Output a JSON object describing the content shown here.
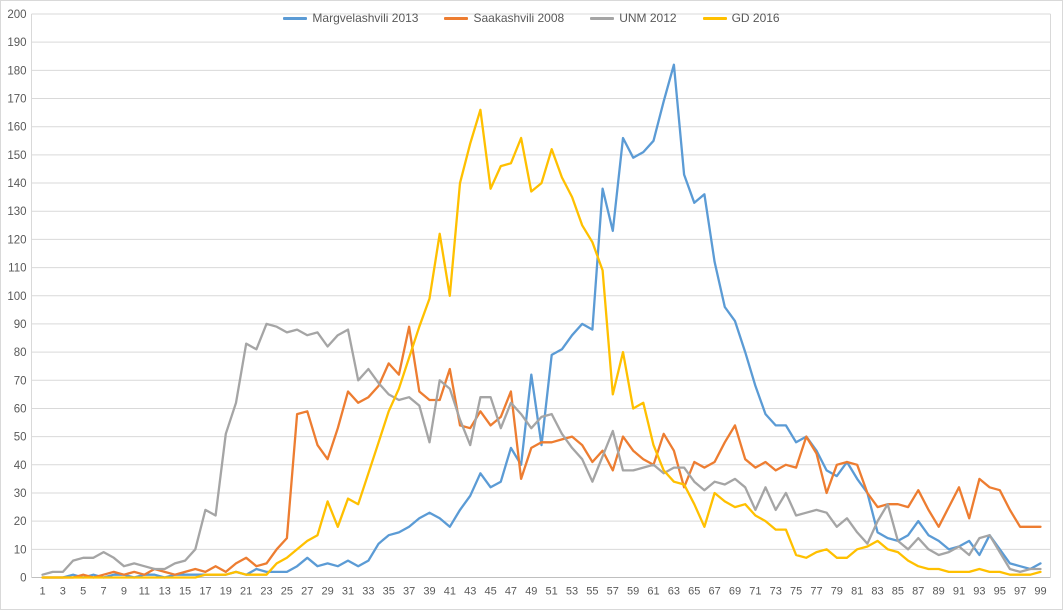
{
  "chart_data": {
    "type": "line",
    "title": "",
    "xlabel": "",
    "ylabel": "",
    "ylim": [
      0,
      200
    ],
    "ytick_step": 10,
    "x_range": [
      1,
      99
    ],
    "x_tick_labels": [
      "1",
      "3",
      "5",
      "7",
      "9",
      "11",
      "13",
      "15",
      "17",
      "19",
      "21",
      "23",
      "25",
      "27",
      "29",
      "31",
      "33",
      "35",
      "37",
      "39",
      "41",
      "43",
      "45",
      "47",
      "49",
      "51",
      "53",
      "55",
      "57",
      "59",
      "61",
      "63",
      "65",
      "67",
      "69",
      "71",
      "73",
      "75",
      "77",
      "79",
      "81",
      "83",
      "85",
      "87",
      "89",
      "91",
      "93",
      "95",
      "97",
      "99"
    ],
    "grid": true,
    "legend_position": "top-center",
    "colors": {
      "background": "#ffffff",
      "gridline": "#d9d9d9",
      "axis_line": "#bfbfbf",
      "tick_text": "#595959"
    },
    "series": [
      {
        "name": "Margvelashvili 2013",
        "color": "#5b9bd5",
        "values": [
          0,
          0,
          0,
          1,
          0,
          1,
          0,
          1,
          1,
          0,
          1,
          1,
          0,
          1,
          1,
          1,
          1,
          1,
          1,
          2,
          1,
          3,
          2,
          2,
          2,
          4,
          7,
          4,
          5,
          4,
          6,
          4,
          6,
          12,
          15,
          16,
          18,
          21,
          23,
          21,
          18,
          24,
          29,
          37,
          32,
          34,
          46,
          40,
          72,
          47,
          79,
          81,
          86,
          90,
          88,
          138,
          123,
          156,
          149,
          151,
          155,
          169,
          182,
          143,
          133,
          136,
          112,
          96,
          91,
          80,
          68,
          58,
          54,
          54,
          48,
          50,
          45,
          38,
          36,
          41,
          35,
          30,
          16,
          14,
          13,
          15,
          20,
          15,
          13,
          10,
          11,
          13,
          8,
          15,
          10,
          5,
          4,
          3,
          5
        ]
      },
      {
        "name": "Saakashvili 2008",
        "color": "#ed7d31",
        "values": [
          0,
          0,
          0,
          0,
          1,
          0,
          1,
          2,
          1,
          2,
          1,
          3,
          2,
          1,
          2,
          3,
          2,
          4,
          2,
          5,
          7,
          4,
          5,
          10,
          14,
          58,
          59,
          47,
          42,
          53,
          66,
          62,
          64,
          68,
          76,
          72,
          89,
          66,
          63,
          63,
          74,
          54,
          53,
          59,
          54,
          57,
          66,
          35,
          46,
          48,
          48,
          49,
          50,
          47,
          41,
          45,
          38,
          50,
          45,
          42,
          40,
          51,
          45,
          32,
          41,
          39,
          41,
          48,
          54,
          42,
          39,
          41,
          38,
          40,
          39,
          50,
          44,
          30,
          40,
          41,
          40,
          30,
          25,
          26,
          26,
          25,
          31,
          24,
          18,
          25,
          32,
          21,
          35,
          32,
          31,
          24,
          18,
          18,
          18
        ]
      },
      {
        "name": "UNM 2012",
        "color": "#a5a5a5",
        "values": [
          1,
          2,
          2,
          6,
          7,
          7,
          9,
          7,
          4,
          5,
          4,
          3,
          3,
          5,
          6,
          10,
          24,
          22,
          51,
          62,
          83,
          81,
          90,
          89,
          87,
          88,
          86,
          87,
          82,
          86,
          88,
          70,
          74,
          69,
          65,
          63,
          64,
          61,
          48,
          70,
          67,
          56,
          47,
          64,
          64,
          53,
          62,
          58,
          53,
          57,
          58,
          51,
          46,
          42,
          34,
          43,
          52,
          38,
          38,
          39,
          40,
          37,
          39,
          39,
          34,
          31,
          34,
          33,
          35,
          32,
          24,
          32,
          24,
          30,
          22,
          23,
          24,
          23,
          18,
          21,
          16,
          12,
          20,
          26,
          13,
          10,
          14,
          10,
          8,
          9,
          11,
          8,
          14,
          15,
          9,
          3,
          2,
          3,
          3
        ]
      },
      {
        "name": "GD 2016",
        "color": "#ffc000",
        "values": [
          0,
          0,
          0,
          0,
          0,
          0,
          0,
          0,
          0,
          0,
          0,
          0,
          0,
          0,
          0,
          0,
          1,
          1,
          1,
          2,
          1,
          1,
          1,
          5,
          7,
          10,
          13,
          15,
          27,
          18,
          28,
          26,
          37,
          48,
          59,
          67,
          78,
          89,
          99,
          122,
          100,
          140,
          154,
          166,
          138,
          146,
          147,
          156,
          137,
          140,
          152,
          142,
          135,
          125,
          119,
          109,
          65,
          80,
          60,
          62,
          47,
          38,
          34,
          33,
          26,
          18,
          30,
          27,
          25,
          26,
          22,
          20,
          17,
          17,
          8,
          7,
          9,
          10,
          7,
          7,
          10,
          11,
          13,
          10,
          9,
          6,
          4,
          3,
          3,
          2,
          2,
          2,
          3,
          2,
          2,
          1,
          1,
          1,
          2
        ]
      }
    ]
  }
}
